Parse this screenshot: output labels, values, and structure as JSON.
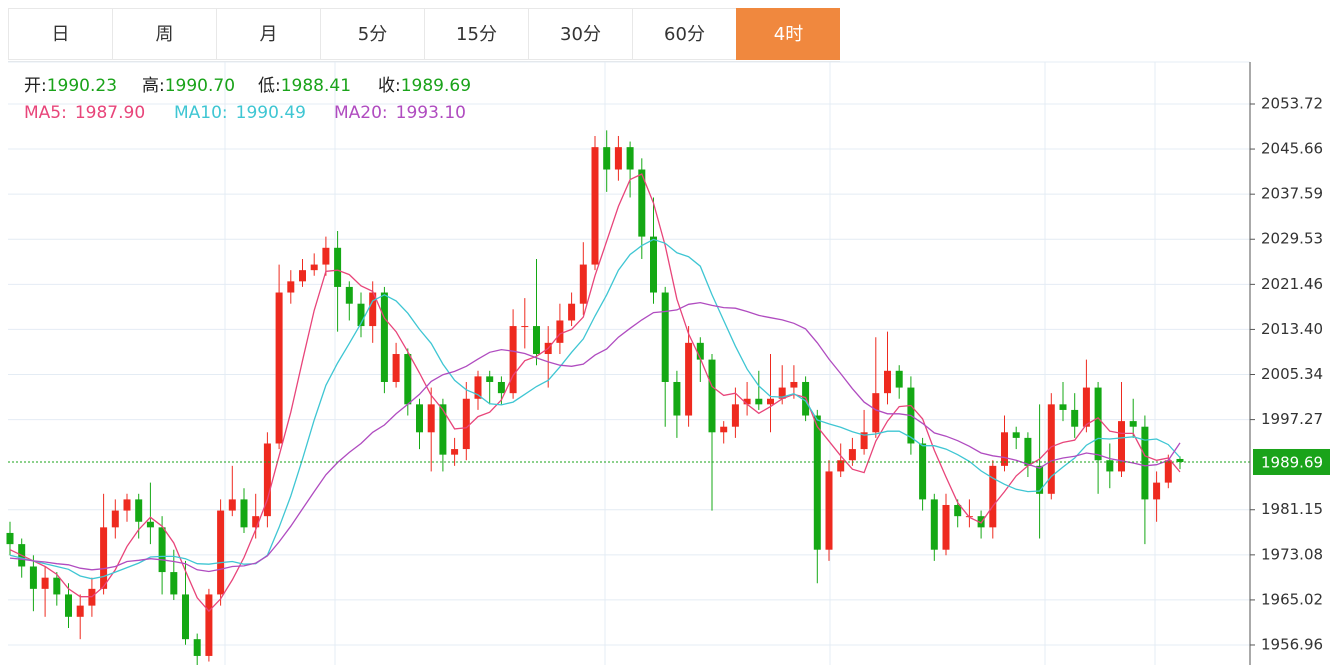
{
  "tabs": {
    "items": [
      "日",
      "周",
      "月",
      "5分",
      "15分",
      "30分",
      "60分",
      "4时"
    ],
    "active": 7
  },
  "chart_data": {
    "type": "candlestick",
    "summary": [
      {
        "name": "开:",
        "value": 1990.23,
        "label": "1990.23"
      },
      {
        "name": "高:",
        "value": 1990.7,
        "label": "1990.70"
      },
      {
        "name": "低:",
        "value": 1988.41,
        "label": "1988.41"
      },
      {
        "name": "收:",
        "value": 1989.69,
        "label": "1989.69"
      }
    ],
    "up_color": "#ee2a1f",
    "down_color": "#14a814",
    "open": [
      1977,
      1975,
      1971,
      1967,
      1969,
      1966,
      1962,
      1964,
      1967,
      1978,
      1981,
      1983,
      1979,
      1978,
      1970,
      1966,
      1958,
      1955,
      1966,
      1981,
      1983,
      1978,
      1980,
      1993,
      2020,
      2022,
      2024,
      2025,
      2028,
      2021,
      2018,
      2014,
      2020,
      2004,
      2009,
      2000,
      1995,
      2000,
      1991,
      1992,
      2001,
      2005,
      2004,
      2002,
      2014,
      2014,
      2009,
      2011,
      2015,
      2018,
      2025,
      2046,
      2042,
      2046,
      2042,
      2030,
      2020,
      2004,
      1998,
      2011,
      2008,
      1995,
      1996,
      2000,
      2001,
      2000,
      2001,
      2003,
      2004,
      1998,
      1974,
      1988,
      1990,
      1992,
      1995,
      2002,
      2006,
      2003,
      1993,
      1983,
      1974,
      1982,
      1980,
      1980,
      1978,
      1989,
      1995,
      1994,
      1989,
      1984,
      2000,
      1999,
      1996,
      2003,
      1990,
      1988,
      1997,
      1996,
      1983,
      1986,
      1990.23
    ],
    "high": [
      1979,
      1976,
      1973,
      1971,
      1970,
      1968,
      1966,
      1969,
      1984,
      1983,
      1984,
      1984,
      1986,
      1980,
      1974,
      1972,
      1959,
      1967,
      1983,
      1989,
      1985,
      1984,
      1995,
      2025,
      2024,
      2026,
      2027,
      2030,
      2031,
      2022,
      2020,
      2022,
      2021,
      2011,
      2010,
      2001,
      2003,
      2001,
      1994,
      2004,
      2006,
      2006,
      2005,
      2017,
      2019,
      2026,
      2014,
      2018,
      2020,
      2029,
      2048,
      2049,
      2048,
      2047,
      2044,
      2037,
      2021,
      2006,
      2014,
      2012,
      2009,
      1997,
      2003,
      2004,
      2006,
      2009,
      2007,
      2007,
      2005,
      1999,
      1990,
      1993,
      1994,
      1999,
      2012,
      2013,
      2007,
      2005,
      1994,
      1984,
      1984,
      1983,
      1983,
      1981,
      1990,
      1998,
      1996,
      1995,
      2000,
      2002,
      2004,
      2002,
      2008,
      2004,
      1993,
      2004,
      2001,
      1998,
      1988,
      1991,
      1990.7
    ],
    "low": [
      1973,
      1969,
      1963,
      1962,
      1964,
      1960,
      1958,
      1962,
      1966,
      1976,
      1979,
      1976,
      1975,
      1966,
      1965,
      1957,
      1952,
      1954,
      1964,
      1980,
      1977,
      1976,
      1978,
      1992,
      2018,
      2021,
      2023,
      2023,
      2013,
      2015,
      2012,
      2011,
      2002,
      2003,
      1998,
      1992,
      1988,
      1988,
      1989,
      1990,
      1999,
      2000,
      2000,
      2001,
      2010,
      2007,
      2003,
      2009,
      2014,
      2016,
      2024,
      2038,
      2040,
      2037,
      2026,
      2018,
      1996,
      1994,
      1996,
      2004,
      1981,
      1993,
      1994,
      1998,
      1999,
      1995,
      2000,
      2001,
      1997,
      1968,
      1972,
      1987,
      1989,
      1991,
      1994,
      2000,
      2001,
      1991,
      1981,
      1972,
      1973,
      1978,
      1978,
      1976,
      1976,
      1988,
      1992,
      1987,
      1976,
      1983,
      1997,
      1994,
      1995,
      1984,
      1985,
      1987,
      1994,
      1975,
      1979,
      1985,
      1988.41
    ],
    "close": [
      1975,
      1971,
      1967,
      1969,
      1966,
      1962,
      1964,
      1967,
      1978,
      1981,
      1983,
      1979,
      1978,
      1970,
      1966,
      1958,
      1955,
      1966,
      1981,
      1983,
      1978,
      1980,
      1993,
      2020,
      2022,
      2024,
      2025,
      2028,
      2021,
      2018,
      2014,
      2020,
      2004,
      2009,
      2000,
      1995,
      2000,
      1991,
      1992,
      2001,
      2005,
      2004,
      2002,
      2014,
      2014,
      2009,
      2011,
      2015,
      2018,
      2025,
      2046,
      2042,
      2046,
      2042,
      2030,
      2020,
      2004,
      1998,
      2011,
      2008,
      1995,
      1996,
      2000,
      2001,
      2000,
      2001,
      2003,
      2004,
      1998,
      1974,
      1988,
      1990,
      1992,
      1995,
      2002,
      2006,
      2003,
      1993,
      1983,
      1974,
      1982,
      1980,
      1980,
      1978,
      1989,
      1995,
      1994,
      1989,
      1984,
      2000,
      1999,
      1996,
      2003,
      1990,
      1988,
      1997,
      1996,
      1983,
      1986,
      1990,
      1989.69
    ],
    "series": [
      {
        "name": "MA5:",
        "color": "#e8457a",
        "last": {
          "value": 1987.9,
          "label": "1987.90"
        },
        "values": [
          1974,
          1973,
          1972,
          1971,
          1969.6,
          1967,
          1965.6,
          1965.6,
          1967.4,
          1970.4,
          1974.6,
          1977.6,
          1979.8,
          1978.2,
          1975.2,
          1970.2,
          1965.4,
          1963,
          1965.2,
          1968.6,
          1972.6,
          1977.6,
          1983,
          1990.8,
          1998.6,
          2007.8,
          2016.8,
          2023.8,
          2024,
          2023.2,
          2021.2,
          2020.2,
          2015.4,
          2013,
          2009.4,
          2005.6,
          2001.6,
          1999,
          1995.6,
          1995.8,
          1997.8,
          1998.6,
          2000.8,
          2005.2,
          2007.8,
          2008.6,
          2010,
          2012.6,
          2013.4,
          2015.6,
          2023,
          2029.2,
          2035.4,
          2040.2,
          2041.2,
          2036,
          2028.4,
          2018.8,
          2012.6,
          2008.2,
          2003.2,
          2001.6,
          2002,
          2000,
          1998.4,
          1999.6,
          2001,
          2001.8,
          2001.2,
          1996,
          1993.4,
          1990.8,
          1988.4,
          1987.8,
          1993.4,
          1997,
          1999.6,
          1999.8,
          1997.4,
          1991.8,
          1987,
          1982.4,
          1979.8,
          1978.8,
          1981.8,
          1984.4,
          1987.2,
          1989,
          1990.2,
          1992.4,
          1993.2,
          1993.6,
          1996.4,
          1997.6,
          1995.2,
          1994.8,
          1994.8,
          1990.8,
          1990,
          1990.4,
          1987.9
        ]
      },
      {
        "name": "MA10:",
        "color": "#3fc6d3",
        "last": {
          "value": 1990.49,
          "label": "1990.49"
        },
        "values": [
          1973,
          1972.5,
          1972,
          1971.5,
          1971,
          1970.5,
          1969.3,
          1968.8,
          1969.2,
          1970,
          1970.8,
          1971.6,
          1972.7,
          1972.8,
          1972.8,
          1972.4,
          1971.5,
          1971.4,
          1971.7,
          1971.9,
          1971.4,
          1971.5,
          1973,
          1978,
          1983.6,
          1990.2,
          1997.2,
          2003.4,
          2007.4,
          2010.9,
          2014.5,
          2018.5,
          2019.6,
          2018.5,
          2016.3,
          2013.4,
          2010.9,
          2007.2,
          2004.3,
          2002.6,
          2001.7,
          2000.1,
          1999.9,
          2000.4,
          2001.8,
          2003.2,
          2004.3,
          2006.7,
          2009.3,
          2011.7,
          2015.8,
          2019.6,
          2024,
          2026.8,
          2028.4,
          2029.5,
          2028.8,
          2027.1,
          2026.4,
          2024.7,
          2019.6,
          2015,
          2010.4,
          2006.3,
          2003.3,
          2001.4,
          2001.3,
          2001.9,
          2000.6,
          1997.2,
          1996.5,
          1995.9,
          1995.1,
          1994.5,
          1994.7,
          1995.2,
          1995.2,
          1994.1,
          1992.6,
          1992.6,
          1992,
          1991,
          1989.8,
          1988.1,
          1986.8,
          1985.7,
          1984.8,
          1984.4,
          1984.5,
          1987.1,
          1988.8,
          1990.4,
          1992.7,
          1993.9,
          1993.8,
          1994,
          1994.2,
          1993.6,
          1993.8,
          1992.8,
          1990.49
        ]
      },
      {
        "name": "MA20:",
        "color": "#b04cc0",
        "last": {
          "value": 1993.1,
          "label": "1993.10"
        },
        "values": [
          1972.5,
          1972.3,
          1972,
          1971.8,
          1971.5,
          1971.3,
          1970.7,
          1970.4,
          1970.6,
          1971,
          1971.9,
          1972.1,
          1972.4,
          1972.2,
          1971.9,
          1971.5,
          1970.4,
          1970.1,
          1970.5,
          1971,
          1971.1,
          1971.6,
          1972.9,
          1975.4,
          1978.2,
          1981.3,
          1984.4,
          1987.4,
          1989.6,
          1991.4,
          1993,
          1995,
          1996.3,
          1998.3,
          2000,
          2001.8,
          2004.1,
          2005.3,
          2005.9,
          2006.8,
          2008.1,
          2009.3,
          2009.8,
          2009.5,
          2009.1,
          2008.3,
          2007.6,
          2007,
          2006.8,
          2007.2,
          2008.8,
          2009.9,
          2012,
          2013.6,
          2015.1,
          2016.4,
          2016.6,
          2016.9,
          2017.9,
          2018.2,
          2017.7,
          2017.3,
          2017.2,
          2016.6,
          2015.9,
          2015.5,
          2015.1,
          2014.5,
          2013.5,
          2011,
          2008.1,
          2005.5,
          2002.8,
          2000.4,
          1999,
          1998.3,
          1998.3,
          1998,
          1996.6,
          1994.9,
          1994.3,
          1993.5,
          1992.5,
          1991.3,
          1990.8,
          1990.5,
          1990,
          1989.3,
          1988.6,
          1989.9,
          1990.4,
          1990.7,
          1991.3,
          1991,
          1990.3,
          1989.9,
          1989.5,
          1989,
          1989.2,
          1990,
          1993.1
        ]
      }
    ],
    "current_price": 1989.69,
    "current_color": "#1aa31a",
    "ylim": [
      1953.38,
      2061.23
    ],
    "yticks": [
      1956.96,
      1965.02,
      1973.08,
      1981.15,
      1997.27,
      2005.34,
      {
        "value": 2013.4,
        "label": "2013.40"
      },
      2021.46,
      2029.53,
      2037.59,
      2045.66,
      2053.72
    ],
    "grid": true
  }
}
